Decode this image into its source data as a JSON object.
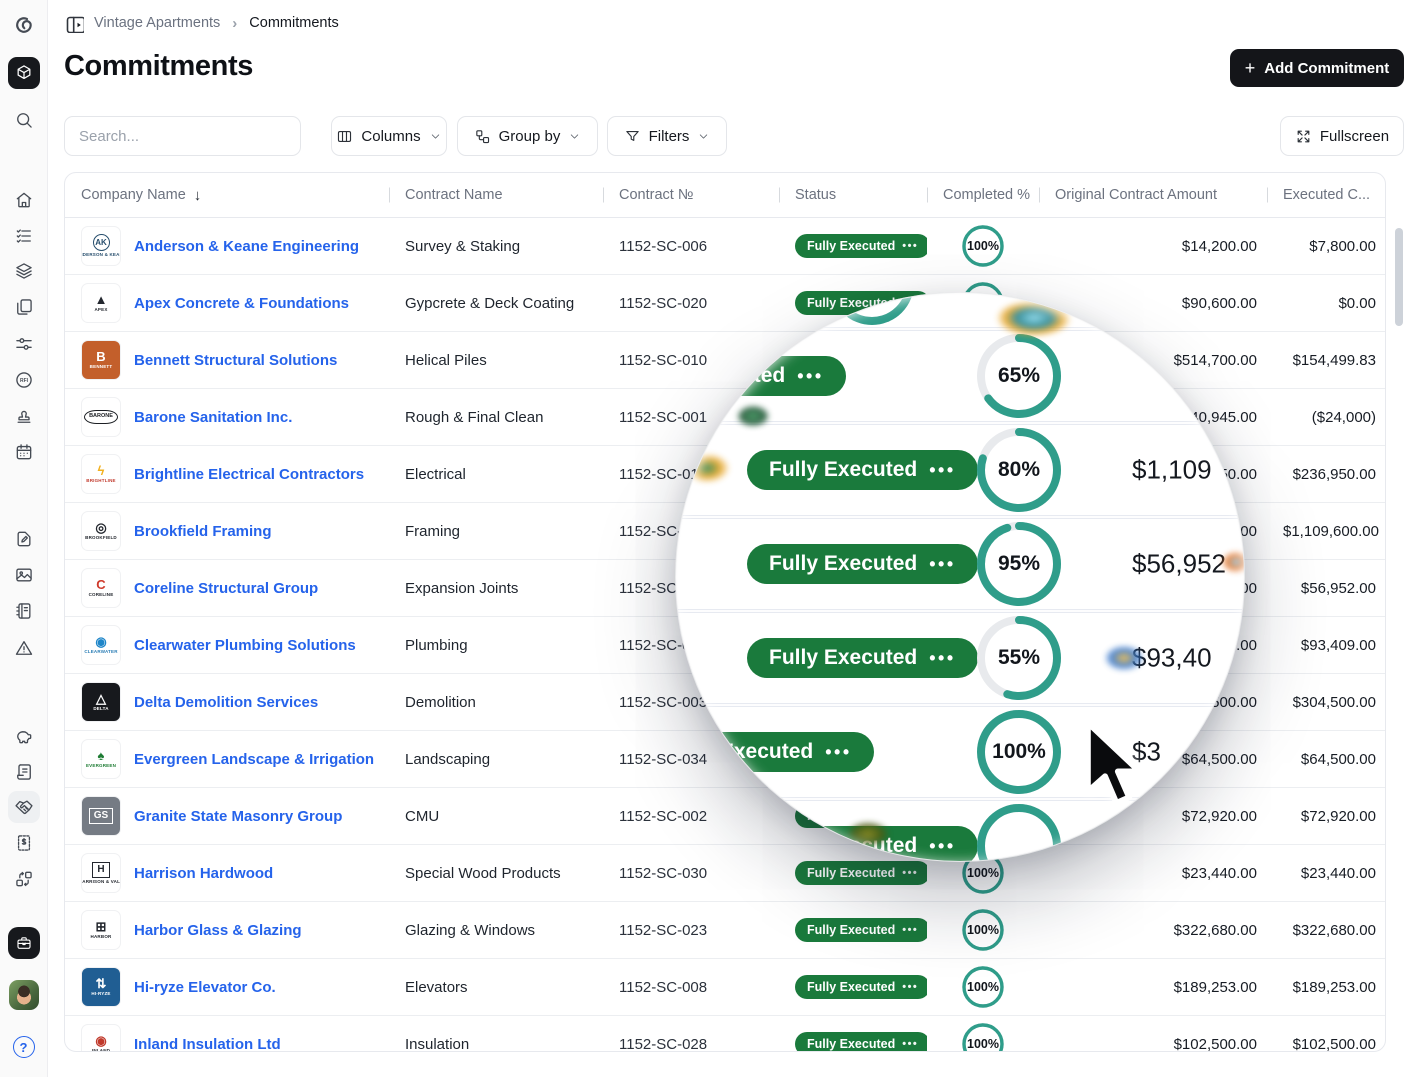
{
  "app": {
    "brand_logo": "spiral-g-logo",
    "breadcrumb": {
      "project": "Vintage Apartments",
      "page": "Commitments"
    },
    "title": "Commitments",
    "add_button_label": "Add Commitment"
  },
  "toolbar": {
    "search_placeholder": "Search...",
    "columns_label": "Columns",
    "group_by_label": "Group by",
    "filters_label": "Filters",
    "fullscreen_label": "Fullscreen"
  },
  "sidebar": {
    "top_icons": [
      "brand-logo",
      "cube-app-icon",
      "search-icon"
    ],
    "nav_icons": [
      "home-icon",
      "tasks-icon",
      "layers-icon",
      "documents-icon",
      "controls-icon",
      "rfi-icon",
      "stamp-icon",
      "calendar-icon"
    ],
    "tool_icons": [
      "drawings-icon",
      "photos-icon",
      "specifications-icon",
      "punch-list-icon"
    ],
    "finance_icons": [
      "budget-icon",
      "bidding-icon",
      "commitments-icon",
      "invoices-icon",
      "change-orders-icon"
    ],
    "active_item": "commitments-icon",
    "bottom_icons": [
      "toolbox-icon",
      "user-avatar",
      "help-icon"
    ]
  },
  "table": {
    "columns": [
      {
        "label": "Company Name",
        "sorted": "desc"
      },
      {
        "label": "Contract Name"
      },
      {
        "label": "Contract №"
      },
      {
        "label": "Status"
      },
      {
        "label": "Completed %"
      },
      {
        "label": "Original Contract Amount"
      },
      {
        "label": "Executed C..."
      }
    ],
    "rows": [
      {
        "company": "Anderson & Keane Engineering",
        "contract_name": "Survey & Staking",
        "contract_no": "1152-SC-006",
        "status": "Fully Executed",
        "completed_pct": 100,
        "original_amount": "$14,200.00",
        "executed_amount": "$7,800.00",
        "logo": {
          "bg": "#ffffff",
          "fg": "#274e6d",
          "glyph": "AK",
          "style": "circ",
          "caption": "ANDERSON & KEANE",
          "cap_fg": "#274e6d"
        }
      },
      {
        "company": "Apex Concrete & Foundations",
        "contract_name": "Gypcrete & Deck Coating",
        "contract_no": "1152-SC-020",
        "status": "Fully Executed",
        "completed_pct": 100,
        "original_amount": "$90,600.00",
        "executed_amount": "$0.00",
        "logo": {
          "bg": "#ffffff",
          "fg": "#23272e",
          "glyph": "▲",
          "style": "plain",
          "caption": "APEX",
          "cap_fg": "#23272e"
        }
      },
      {
        "company": "Bennett Structural Solutions",
        "contract_name": "Helical Piles",
        "contract_no": "1152-SC-010",
        "status": "Fully Executed",
        "completed_pct": null,
        "original_amount": "$514,700.00",
        "executed_amount": "$154,499.83",
        "logo": {
          "bg": "#c35f2b",
          "fg": "#ffffff",
          "glyph": "B",
          "style": "plain",
          "caption": "BENNETT",
          "cap_fg": "#ffffff"
        }
      },
      {
        "company": "Barone Sanitation Inc.",
        "contract_name": "Rough & Final Clean",
        "contract_no": "1152-SC-001",
        "status": "Fully Executed",
        "completed_pct": null,
        "original_amount": "$140,945.00",
        "executed_amount": "($24,000)",
        "logo": {
          "bg": "#ffffff",
          "fg": "#1c1f24",
          "glyph": "BARONE",
          "style": "oval",
          "caption": "",
          "cap_fg": "#1c1f24"
        }
      },
      {
        "company": "Brightline Electrical Contractors",
        "contract_name": "Electrical",
        "contract_no": "1152-SC-012",
        "status": "Fully Executed",
        "completed_pct": 65,
        "original_amount": "$236,950.00",
        "executed_amount": "$236,950.00",
        "logo": {
          "bg": "#ffffff",
          "fg": "#f2b01e",
          "glyph": "ϟ",
          "style": "plain",
          "caption": "BRIGHTLINE",
          "cap_fg": "#c23b2e"
        }
      },
      {
        "company": "Brookfield Framing",
        "contract_name": "Framing",
        "contract_no": "1152-SC-031",
        "status": "Fully Executed",
        "completed_pct": 80,
        "original_amount": "$1,109,600.00",
        "executed_amount": "$1,109,600.00",
        "logo": {
          "bg": "#ffffff",
          "fg": "#23272e",
          "glyph": "◎",
          "style": "plain",
          "caption": "BROOKFIELD",
          "cap_fg": "#23272e"
        }
      },
      {
        "company": "Coreline Structural Group",
        "contract_name": "Expansion Joints",
        "contract_no": "1152-SC-007",
        "status": "Fully Executed",
        "completed_pct": 95,
        "original_amount": "$56,952.00",
        "executed_amount": "$56,952.00",
        "logo": {
          "bg": "#ffffff",
          "fg": "#cf3a2c",
          "glyph": "C",
          "style": "plain",
          "caption": "CORELINE",
          "cap_fg": "#23272e"
        }
      },
      {
        "company": "Clearwater Plumbing Solutions",
        "contract_name": "Plumbing",
        "contract_no": "1152-SC-025",
        "status": "Fully Executed",
        "completed_pct": 55,
        "original_amount": "$93,409.00",
        "executed_amount": "$93,409.00",
        "logo": {
          "bg": "#ffffff",
          "fg": "#1f86c9",
          "glyph": "◉",
          "style": "plain",
          "caption": "CLEARWATER",
          "cap_fg": "#2a7db5"
        }
      },
      {
        "company": "Delta Demolition Services",
        "contract_name": "Demolition",
        "contract_no": "1152-SC-003",
        "status": "Fully Executed",
        "completed_pct": 100,
        "original_amount": "$304,500.00",
        "executed_amount": "$304,500.00",
        "logo": {
          "bg": "#17191d",
          "fg": "#ffffff",
          "glyph": "△",
          "style": "plain",
          "caption": "DELTA",
          "cap_fg": "#ffffff"
        }
      },
      {
        "company": "Evergreen Landscape & Irrigation",
        "contract_name": "Landscaping",
        "contract_no": "1152-SC-034",
        "status": "Fully Executed",
        "completed_pct": 100,
        "original_amount": "$64,500.00",
        "executed_amount": "$64,500.00",
        "logo": {
          "bg": "#ffffff",
          "fg": "#1e7c34",
          "glyph": "♠",
          "style": "plain",
          "caption": "EVERGREEN",
          "cap_fg": "#1e7c34"
        }
      },
      {
        "company": "Granite State Masonry Group",
        "contract_name": "CMU",
        "contract_no": "1152-SC-002",
        "status": "Fully Executed",
        "completed_pct": null,
        "original_amount": "$72,920.00",
        "executed_amount": "$72,920.00",
        "logo": {
          "bg": "#757b84",
          "fg": "#ffffff",
          "glyph": "GS",
          "style": "box",
          "caption": "",
          "cap_fg": "#ffffff"
        }
      },
      {
        "company": "Harrison Hardwood",
        "contract_name": "Special Wood Products",
        "contract_no": "1152-SC-030",
        "status": "Fully Executed",
        "completed_pct": 100,
        "original_amount": "$23,440.00",
        "executed_amount": "$23,440.00",
        "logo": {
          "bg": "#ffffff",
          "fg": "#23272e",
          "glyph": "H",
          "style": "box",
          "caption": "HARRISON & VALE",
          "cap_fg": "#23272e"
        }
      },
      {
        "company": "Harbor Glass & Glazing",
        "contract_name": "Glazing & Windows",
        "contract_no": "1152-SC-023",
        "status": "Fully Executed",
        "completed_pct": 100,
        "original_amount": "$322,680.00",
        "executed_amount": "$322,680.00",
        "logo": {
          "bg": "#ffffff",
          "fg": "#23272e",
          "glyph": "⊞",
          "style": "plain",
          "caption": "HARBOR",
          "cap_fg": "#23272e"
        }
      },
      {
        "company": "Hi-ryze Elevator Co.",
        "contract_name": "Elevators",
        "contract_no": "1152-SC-008",
        "status": "Fully Executed",
        "completed_pct": 100,
        "original_amount": "$189,253.00",
        "executed_amount": "$189,253.00",
        "logo": {
          "bg": "#205e93",
          "fg": "#ffffff",
          "glyph": "⇅",
          "style": "plain",
          "caption": "HI-RYZE",
          "cap_fg": "#ffffff"
        }
      },
      {
        "company": "Inland Insulation Ltd",
        "contract_name": "Insulation",
        "contract_no": "1152-SC-028",
        "status": "Fully Executed",
        "completed_pct": 100,
        "original_amount": "$102,500.00",
        "executed_amount": "$102,500.00",
        "logo": {
          "bg": "#ffffff",
          "fg": "#c0392b",
          "glyph": "◉",
          "style": "plain",
          "caption": "INLAND",
          "cap_fg": "#23272e"
        }
      }
    ]
  },
  "lens": {
    "description": "circular magnifier overlay with mouse cursor",
    "rows": [
      {
        "badge": "Fully Executed",
        "pct": 65,
        "amount_partial": ""
      },
      {
        "badge": "Fully Executed",
        "pct": 80,
        "amount_partial": "$1,109"
      },
      {
        "badge": "Fully Executed",
        "pct": 95,
        "amount_partial": "$56,952"
      },
      {
        "badge": "Fully Executed",
        "pct": 55,
        "amount_partial": "$93,40"
      },
      {
        "badge": "Fully Executed",
        "pct": 100,
        "amount_partial": "$3"
      }
    ]
  },
  "colors": {
    "badge_green": "#1a7a3c",
    "ring_teal": "#2f9d8a",
    "ring_track": "#e8eaed",
    "link_blue": "#2563eb",
    "dark_button": "#141519",
    "sidebar_bg": "#fafafa",
    "border": "#e7e9ee"
  }
}
